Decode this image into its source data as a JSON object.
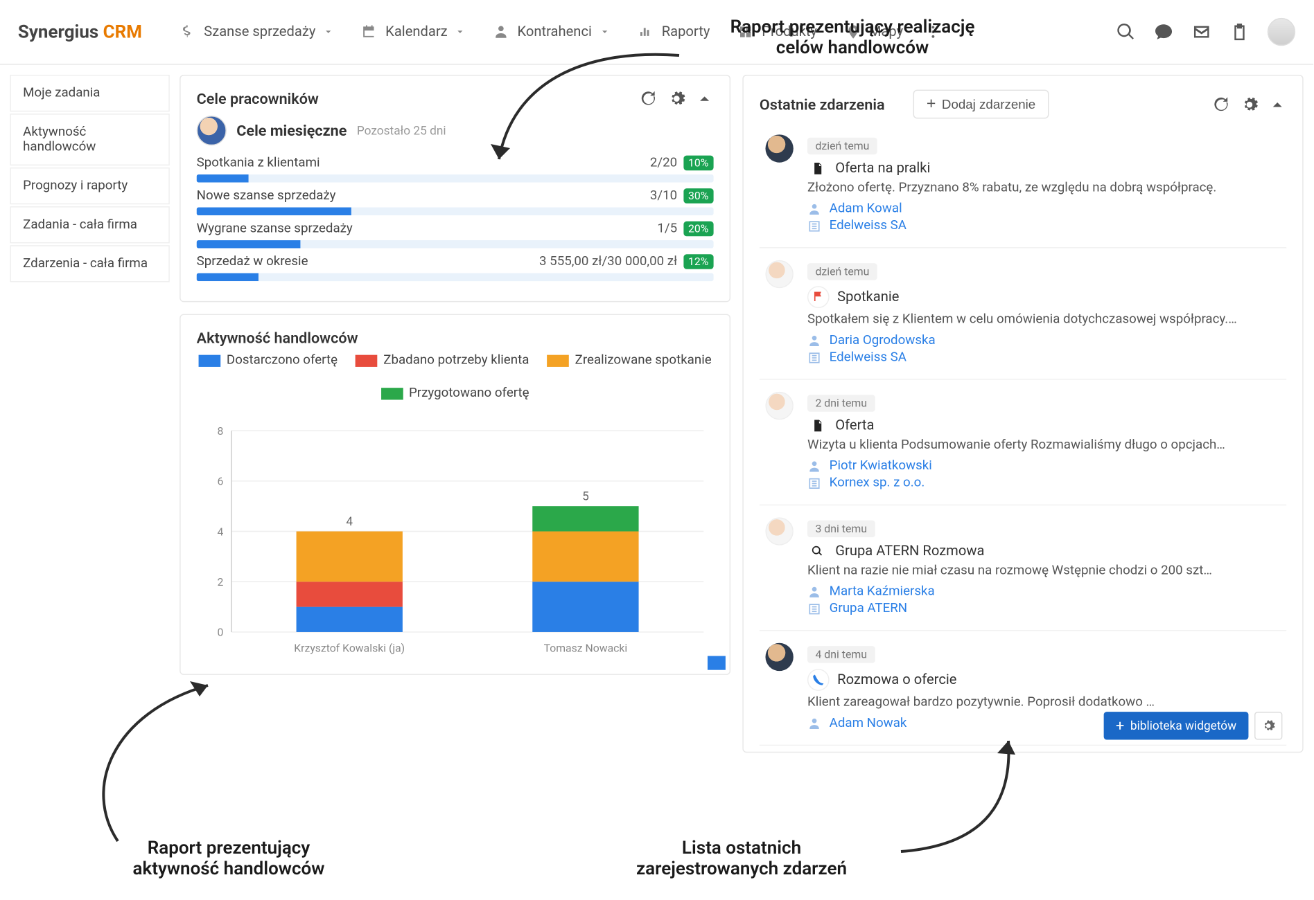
{
  "annotations": {
    "top": "Raport prezentujący realizację\ncelów handlowców",
    "bottom_left": "Raport prezentujący\naktywność handlowców",
    "bottom_right": "Lista ostatnich\nzarejestrowanych zdarzeń"
  },
  "brand": {
    "name": "Synergius",
    "suffix": "CRM",
    "accent_color": "#e87a00"
  },
  "nav": [
    {
      "label": "Szanse sprzedaży",
      "icon": "dollar",
      "chevron": true
    },
    {
      "label": "Kalendarz",
      "icon": "calendar",
      "chevron": true
    },
    {
      "label": "Kontrahenci",
      "icon": "person",
      "chevron": true
    },
    {
      "label": "Raporty",
      "icon": "bars",
      "chevron": false
    },
    {
      "label": "Produkty",
      "icon": "grid",
      "chevron": false
    },
    {
      "label": "Mapy",
      "icon": "pin",
      "chevron": false
    }
  ],
  "sidenav": [
    "Moje zadania",
    "Aktywność handlowców",
    "Prognozy i raporty",
    "Zadania - cała firma",
    "Zdarzenia - cała firma"
  ],
  "goals_card": {
    "title": "Cele pracowników",
    "period_title": "Cele miesięczne",
    "remaining": "Pozostało 25 dni",
    "rows": [
      {
        "label": "Spotkania z klientami",
        "value": "2/20",
        "pct_label": "10%",
        "fill": 10
      },
      {
        "label": "Nowe szanse sprzedaży",
        "value": "3/10",
        "pct_label": "30%",
        "fill": 30
      },
      {
        "label": "Wygrane szanse sprzedaży",
        "value": "1/5",
        "pct_label": "20%",
        "fill": 20
      },
      {
        "label": "Sprzedaż w okresie",
        "value": "3 555,00 zł/30 000,00 zł",
        "pct_label": "12%",
        "fill": 12
      }
    ]
  },
  "activity_card": {
    "title": "Aktywność handlowców",
    "legend": [
      {
        "label": "Dostarczono ofertę",
        "color": "#2a7fe6"
      },
      {
        "label": "Zbadano potrzeby klienta",
        "color": "#e84c3d"
      },
      {
        "label": "Zrealizowane spotkanie",
        "color": "#f4a224"
      },
      {
        "label": "Przygotowano ofertę",
        "color": "#2ba84a"
      }
    ],
    "chart": {
      "type": "stacked-bar",
      "ylim": [
        0,
        8
      ],
      "ytick_step": 2,
      "bar_width": 0.45,
      "grid_color": "#eeeeee",
      "axis_color": "#cccccc",
      "label_color": "#888888",
      "categories": [
        "Krzysztof Kowalski (ja)",
        "Tomasz Nowacki"
      ],
      "value_labels": [
        4,
        5
      ],
      "series": [
        {
          "name": "Dostarczono ofertę",
          "color": "#2a7fe6",
          "values": [
            1,
            2
          ]
        },
        {
          "name": "Zbadano potrzeby klienta",
          "color": "#e84c3d",
          "values": [
            1,
            0
          ]
        },
        {
          "name": "Zrealizowane spotkanie",
          "color": "#f4a224",
          "values": [
            2,
            2
          ]
        },
        {
          "name": "Przygotowano ofertę",
          "color": "#2ba84a",
          "values": [
            0,
            1
          ]
        }
      ]
    }
  },
  "events_card": {
    "title": "Ostatnie zdarzenia",
    "add_label": "Dodaj zdarzenie",
    "items": [
      {
        "time": "dzień temu",
        "icon": "doc",
        "icon_color": "#222",
        "title": "Oferta na pralki",
        "desc": "Złożono ofertę. Przyznano 8% rabatu, ze względu na dobrą współpracę.",
        "person": "Adam Kowal",
        "company": "Edelweiss SA",
        "avatar": "dark"
      },
      {
        "time": "dzień temu",
        "icon": "flag",
        "icon_color": "#e84c3d",
        "title": "Spotkanie",
        "desc": "Spotkałem się z Klientem w celu omówienia dotychczasowej współpracy.…",
        "person": "Daria Ogrodowska",
        "company": "Edelweiss SA",
        "avatar": "light"
      },
      {
        "time": "2 dni temu",
        "icon": "doc",
        "icon_color": "#222",
        "title": "Oferta",
        "desc": "Wizyta u klienta Podsumowanie oferty Rozmawialiśmy długo o opcjach…",
        "person": "Piotr Kwiatkowski",
        "company": "Kornex sp. z o.o.",
        "avatar": "light"
      },
      {
        "time": "3 dni temu",
        "icon": "search",
        "icon_color": "#222",
        "title": "Grupa ATERN Rozmowa",
        "desc": "Klient na razie nie miał czasu na rozmowę Wstępnie chodzi o 200 szt…",
        "person": "Marta Kaźmierska",
        "company": "Grupa ATERN",
        "avatar": "light"
      },
      {
        "time": "4 dni temu",
        "icon": "phone",
        "icon_color": "#2a7fe6",
        "title": "Rozmowa o ofercie",
        "desc": "Klient zareagował bardzo pozytywnie. Poprosił dodatkowo …",
        "person": "Adam Nowak",
        "company": "",
        "avatar": "dark"
      }
    ]
  },
  "widgets_btn": "biblioteka widgetów"
}
